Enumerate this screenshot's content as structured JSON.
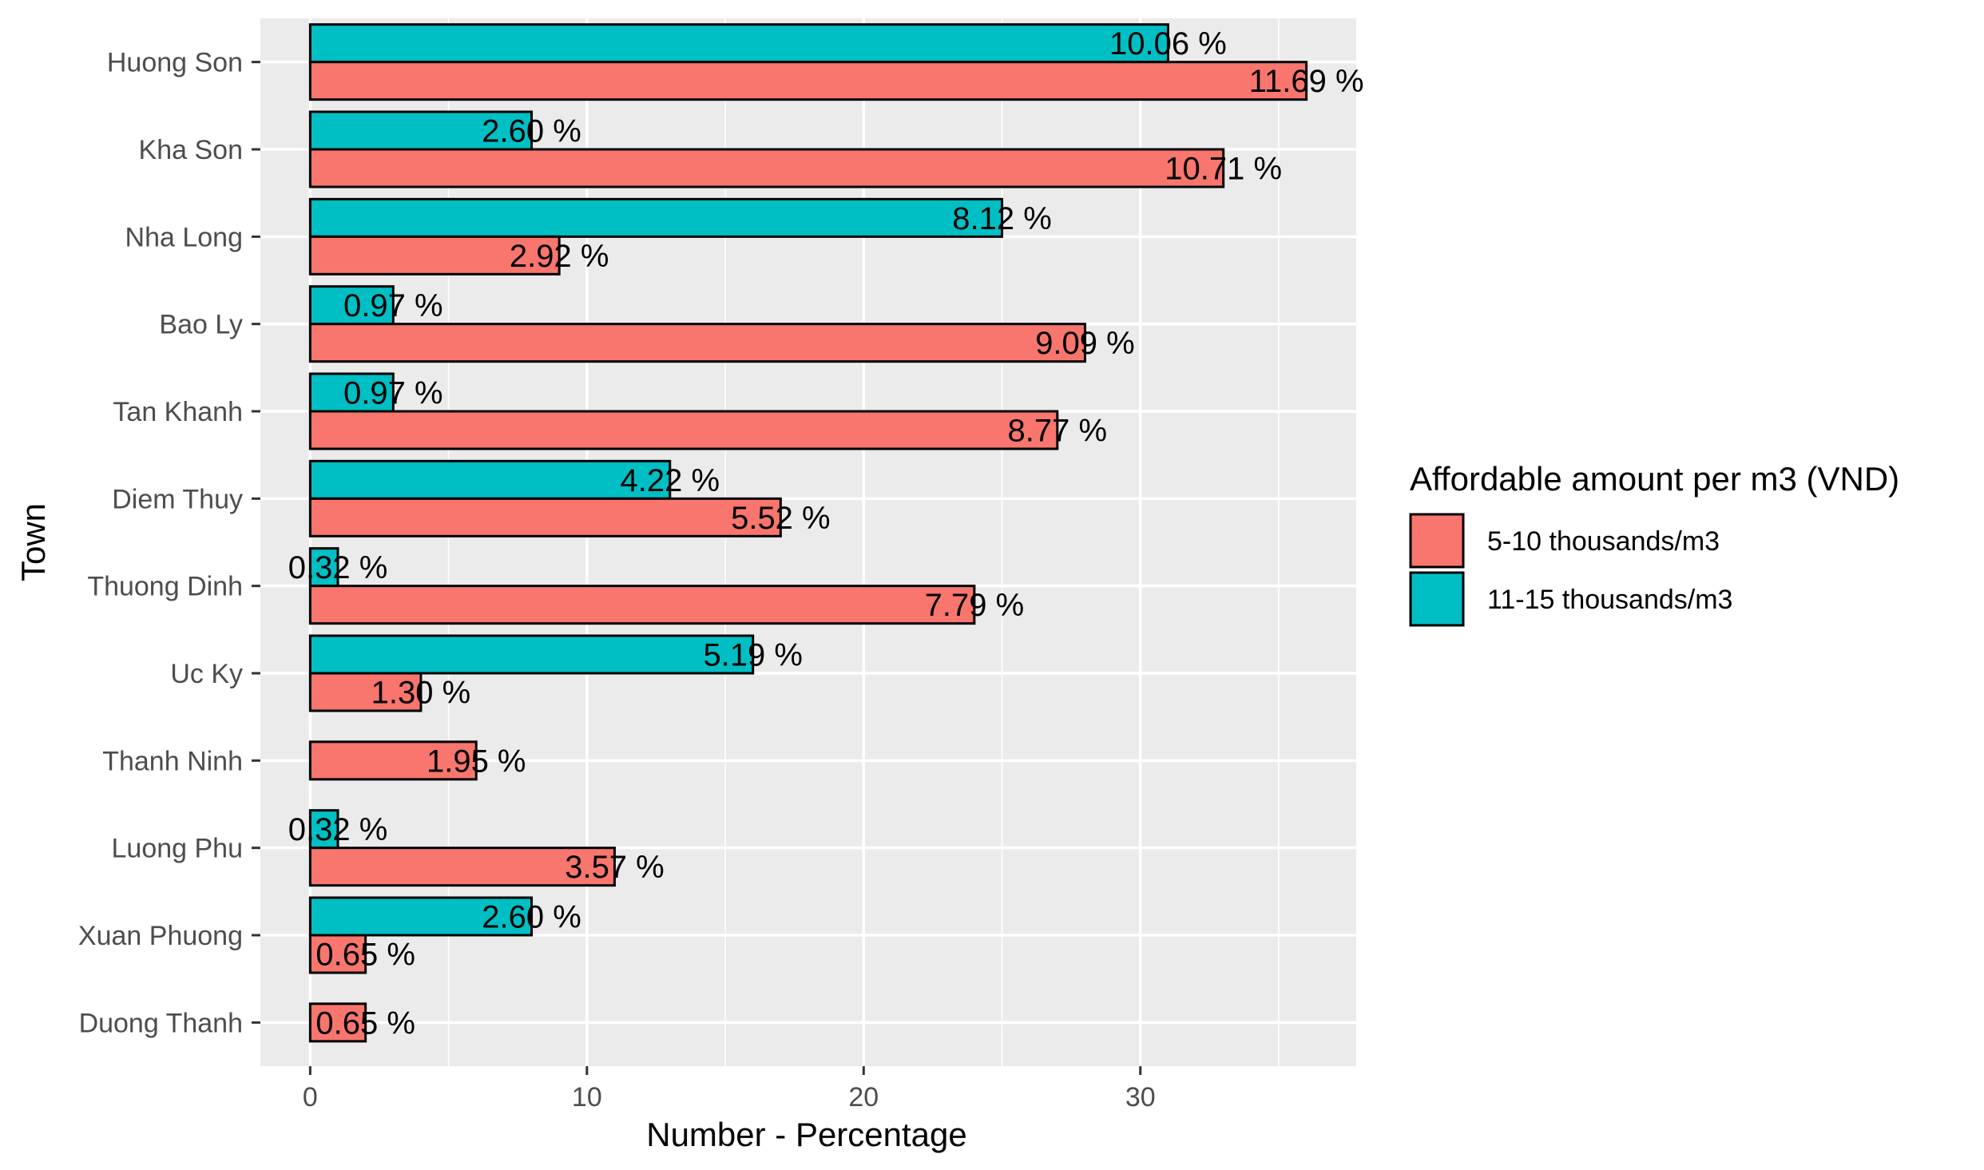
{
  "chart_data": {
    "type": "bar",
    "orientation": "horizontal",
    "title": "",
    "xlabel": "Number - Percentage",
    "ylabel": "Town",
    "xlim": [
      -1.8,
      37.8
    ],
    "xticks": [
      0,
      10,
      20,
      30
    ],
    "grid": true,
    "legend_position": "right",
    "legend_title": "Affordable amount per m3 (VND)",
    "categories": [
      "Huong Son",
      "Kha Son",
      "Nha Long",
      "Bao Ly",
      "Tan Khanh",
      "Diem Thuy",
      "Thuong Dinh",
      "Uc Ky",
      "Thanh Ninh",
      "Luong Phu",
      "Xuan Phuong",
      "Duong Thanh"
    ],
    "series": [
      {
        "name": "5-10 thousands/m3",
        "color": "#F8766D",
        "values": [
          36,
          33,
          9,
          28,
          27,
          17,
          24,
          4,
          6,
          11,
          2,
          2
        ],
        "labels": [
          "11.69 %",
          "10.71 %",
          "2.92 %",
          "9.09 %",
          "8.77 %",
          "5.52 %",
          "7.79 %",
          "1.30 %",
          "1.95 %",
          "3.57 %",
          "0.65 %",
          "0.65 %"
        ]
      },
      {
        "name": "11-15 thousands/m3",
        "color": "#00BFC4",
        "values": [
          31,
          8,
          25,
          3,
          3,
          13,
          1,
          16,
          null,
          1,
          8,
          null
        ],
        "labels": [
          "10.06 %",
          "2.60 %",
          "8.12 %",
          "0.97 %",
          "0.97 %",
          "4.22 %",
          "0.32 %",
          "5.19 %",
          "",
          "0.32 %",
          "2.60 %",
          ""
        ]
      }
    ],
    "colors": {
      "panel_background": "#EBEBEB",
      "grid": "#FFFFFF",
      "bar_outline": "#000000"
    }
  }
}
